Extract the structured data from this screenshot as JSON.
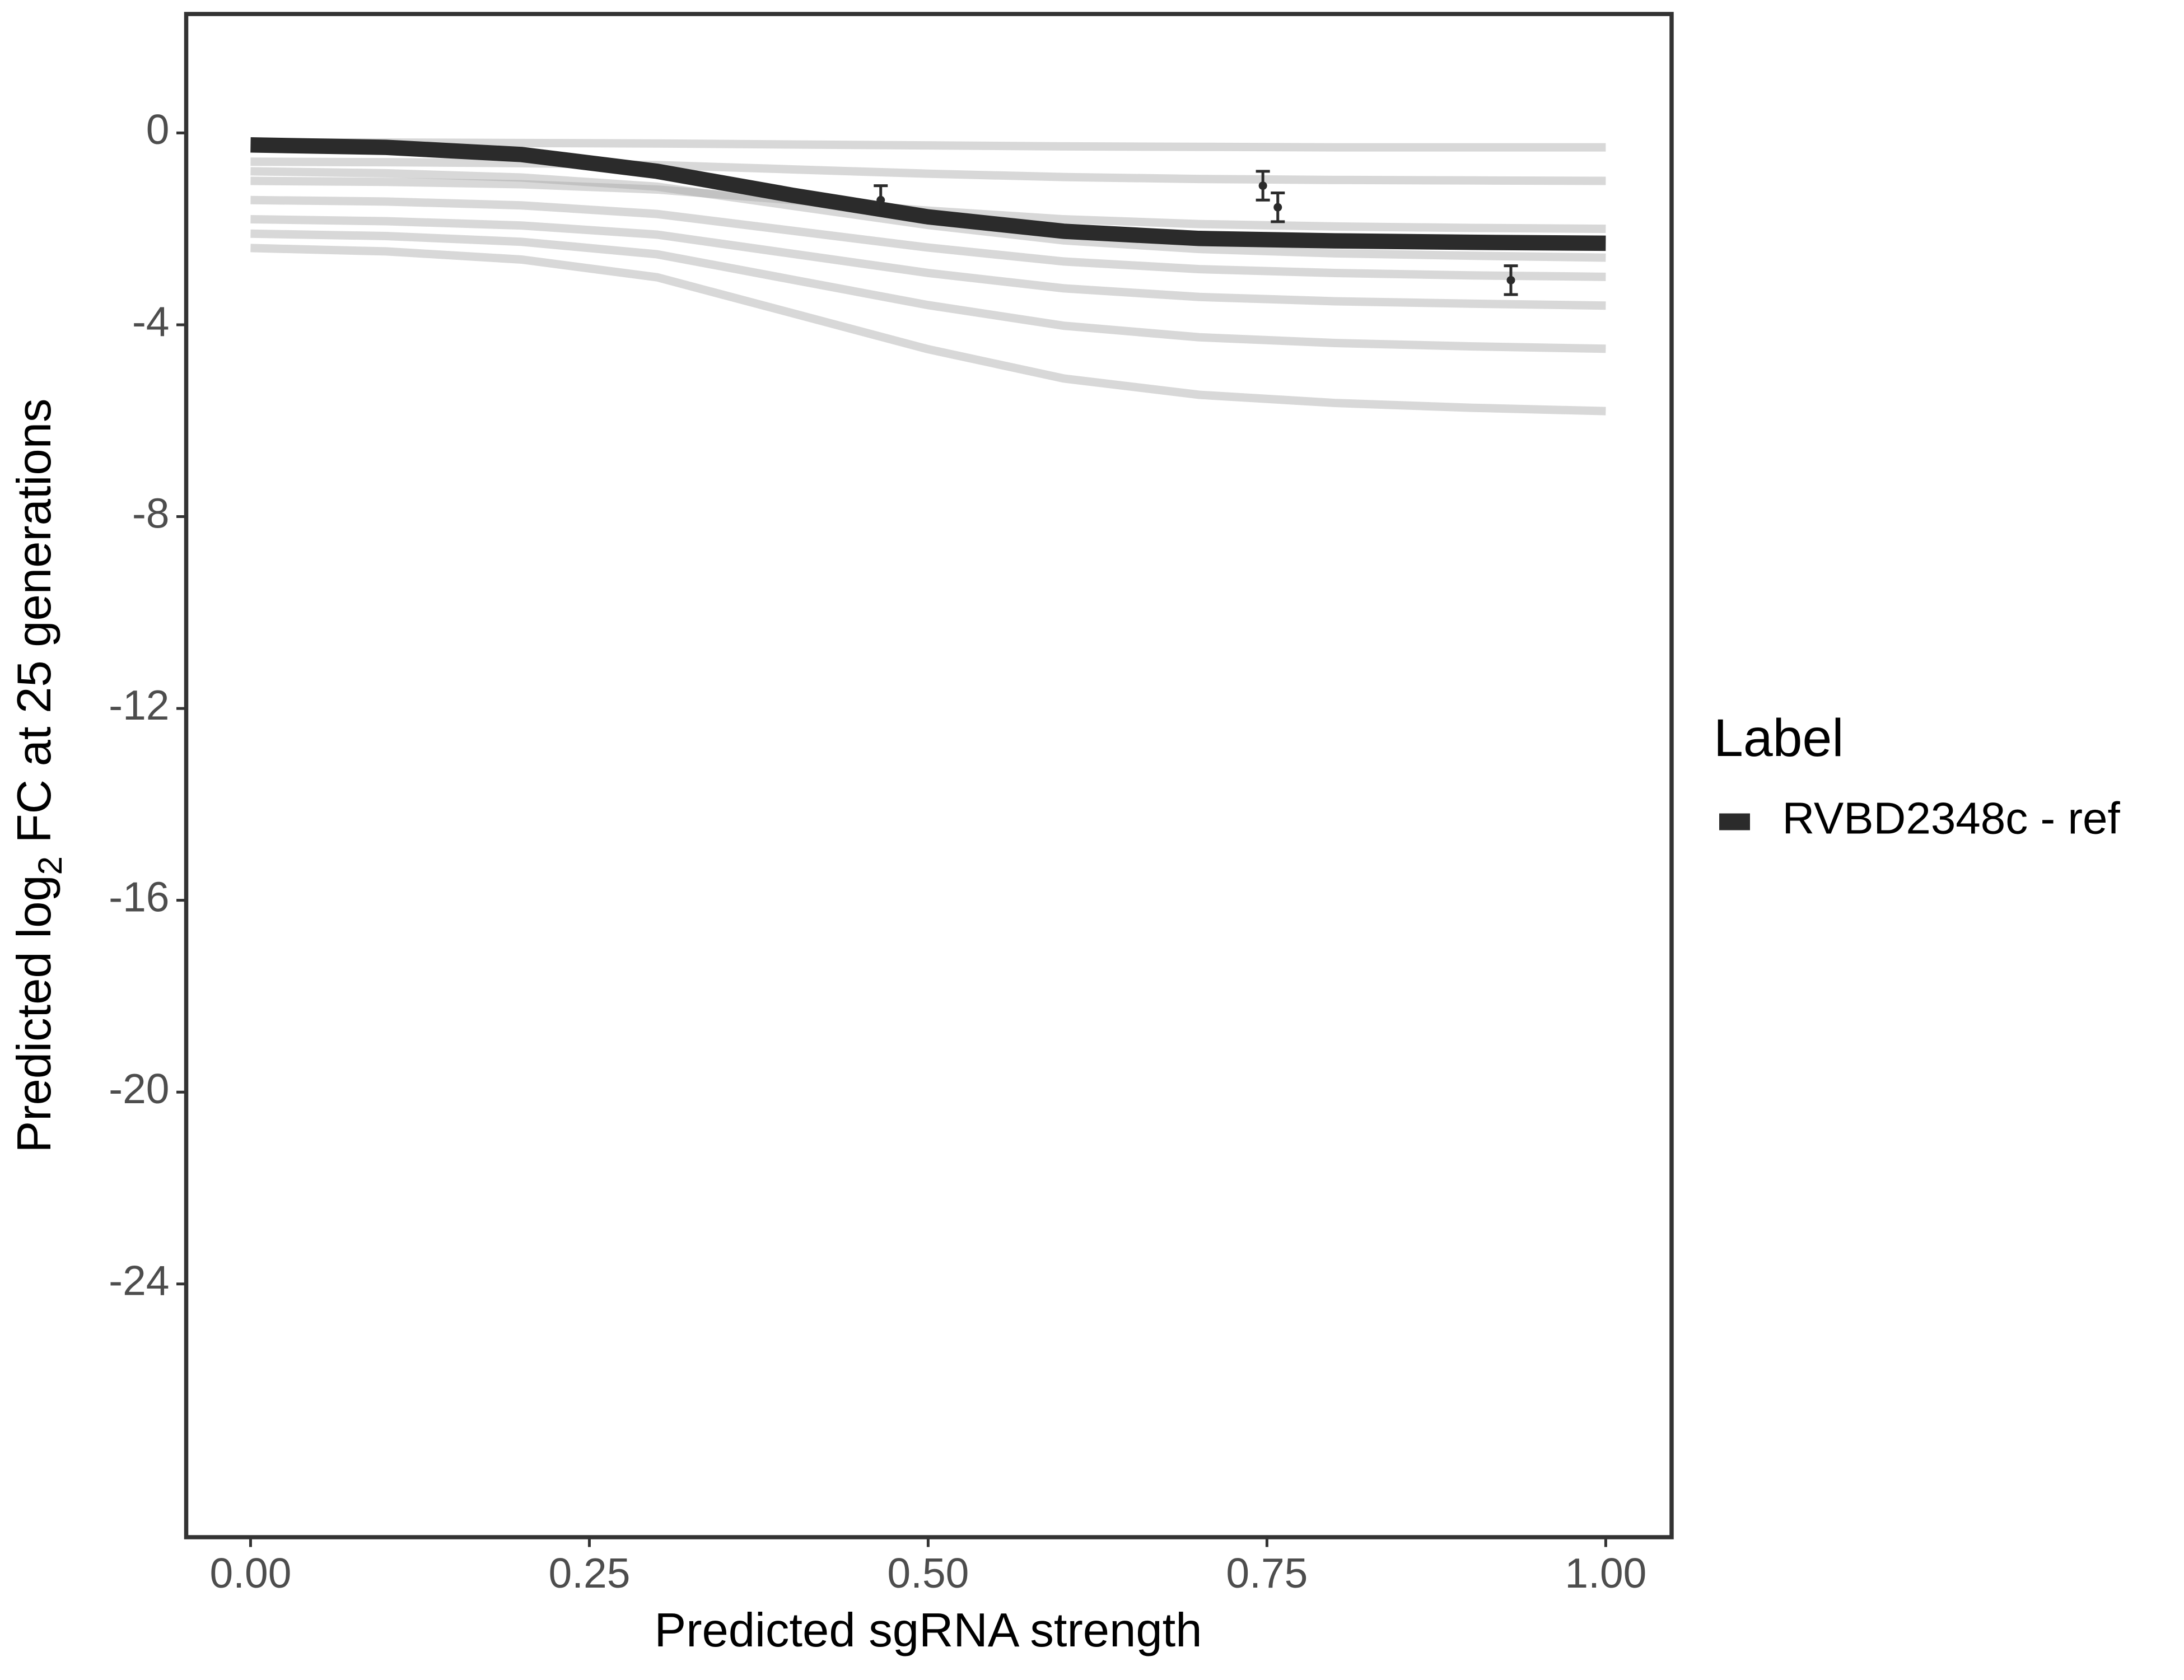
{
  "chart_data": {
    "type": "line",
    "x_label": "Predicted sgRNA strength",
    "y_label": {
      "before": "Predicted  log",
      "sub": "2",
      "after": " FC at 25 generations"
    },
    "legend_title": "Label",
    "legend_position": "right",
    "x": [
      0,
      0.1,
      0.2,
      0.3,
      0.4,
      0.5,
      0.6,
      0.7,
      0.8,
      0.9,
      1.0
    ],
    "series": [
      {
        "name": "RVBD2348c - ref",
        "color": "#2b2b2b",
        "values": [
          -0.25,
          -0.3,
          -0.45,
          -0.8,
          -1.3,
          -1.75,
          -2.05,
          -2.2,
          -2.25,
          -2.28,
          -2.3
        ]
      }
    ],
    "draw_color": "#a9a9a9",
    "draws": [
      [
        -0.2,
        -0.2,
        -0.21,
        -0.22,
        -0.24,
        -0.26,
        -0.28,
        -0.29,
        -0.3,
        -0.3,
        -0.3
      ],
      [
        -0.6,
        -0.61,
        -0.63,
        -0.67,
        -0.76,
        -0.85,
        -0.92,
        -0.96,
        -0.98,
        -0.99,
        -1.0
      ],
      [
        -1,
        -1.02,
        -1.07,
        -1.18,
        -1.4,
        -1.62,
        -1.8,
        -1.9,
        -1.95,
        -1.98,
        -2
      ],
      [
        -0.8,
        -0.84,
        -0.93,
        -1.12,
        -1.52,
        -1.92,
        -2.24,
        -2.42,
        -2.51,
        -2.56,
        -2.6
      ],
      [
        -1.4,
        -1.43,
        -1.51,
        -1.69,
        -2.04,
        -2.39,
        -2.68,
        -2.84,
        -2.92,
        -2.97,
        -3.0
      ],
      [
        -1.8,
        -1.84,
        -1.93,
        -2.12,
        -2.52,
        -2.92,
        -3.24,
        -3.42,
        -3.51,
        -3.56,
        -3.6
      ],
      [
        -2.1,
        -2.15,
        -2.27,
        -2.53,
        -3.06,
        -3.59,
        -4.02,
        -4.26,
        -4.38,
        -4.45,
        -4.5
      ],
      [
        -2.4,
        -2.47,
        -2.64,
        -3.01,
        -3.76,
        -4.51,
        -5.12,
        -5.46,
        -5.63,
        -5.73,
        -5.8
      ]
    ],
    "points": {
      "x": [
        0.465,
        0.747,
        0.758,
        0.93
      ],
      "y": [
        -1.4,
        -1.1,
        -1.55,
        -3.07
      ],
      "error": [
        0.3,
        0.3,
        0.3,
        0.3
      ]
    },
    "xlim": [
      -0.0475,
      1.0486
    ],
    "ylim": [
      -29.28,
      2.48
    ],
    "xticks": [
      {
        "value": 0,
        "label": "0.00"
      },
      {
        "value": 0.25,
        "label": "0.25"
      },
      {
        "value": 0.5,
        "label": "0.50"
      },
      {
        "value": 0.75,
        "label": "0.75"
      },
      {
        "value": 1,
        "label": "1.00"
      }
    ],
    "yticks": [
      0,
      -4,
      -8,
      -12,
      -16,
      -20,
      -24
    ],
    "grid": false
  }
}
